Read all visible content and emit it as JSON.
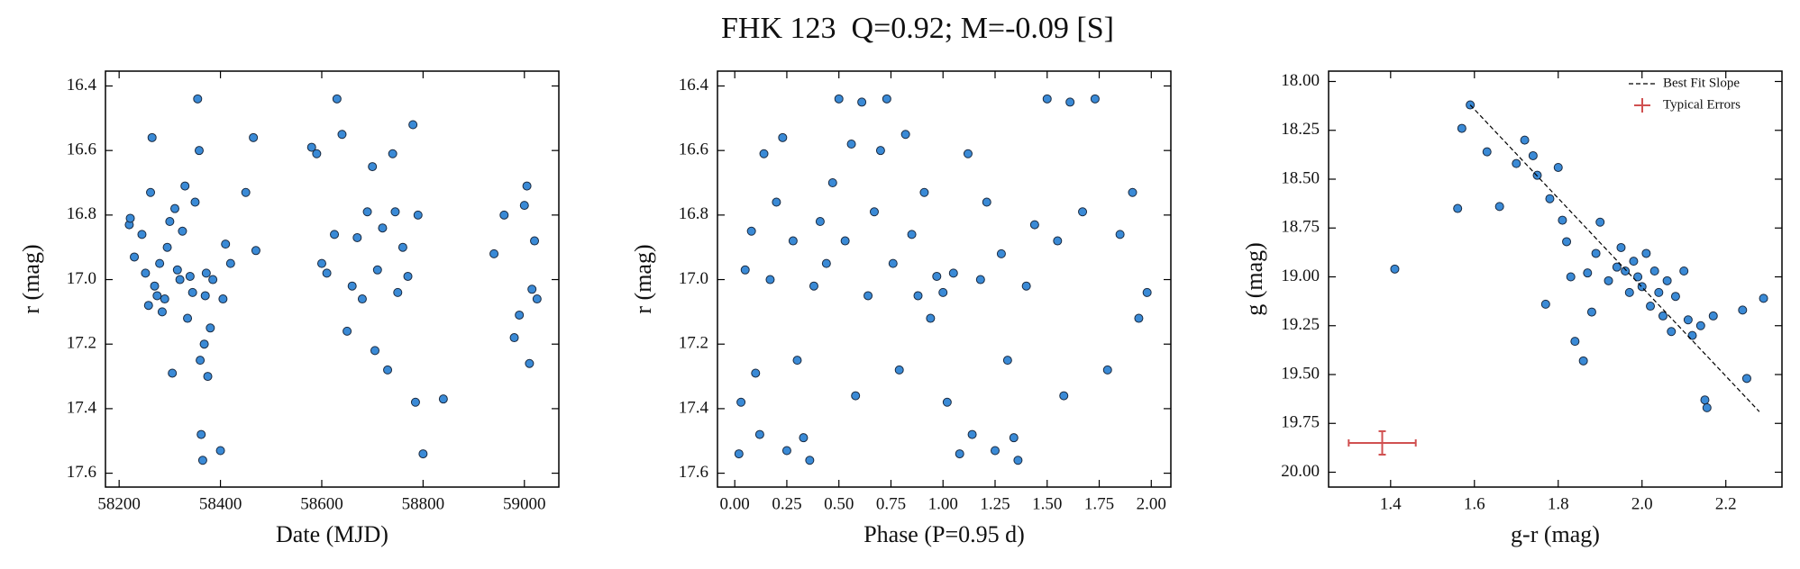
{
  "title": "FHK 123  Q=0.92; M=-0.09 [S]",
  "chart_data": [
    {
      "type": "scatter",
      "xlabel": "Date (MJD)",
      "ylabel": "r (mag)",
      "color": "#3a8ad6",
      "y_inverted": true,
      "xlim": [
        58173,
        59068
      ],
      "xticks": [
        58200,
        58400,
        58600,
        58800,
        59000
      ],
      "ylim": [
        16.354,
        17.643
      ],
      "yticks": [
        16.4,
        16.6,
        16.8,
        {
          "value": 17,
          "label": "17.0"
        },
        17.2,
        17.4,
        17.6
      ],
      "x": [
        58220,
        58222,
        58230,
        58245,
        58252,
        58258,
        58262,
        58265,
        58270,
        58275,
        58280,
        58285,
        58290,
        58295,
        58300,
        58305,
        58310,
        58315,
        58320,
        58325,
        58330,
        58335,
        58340,
        58345,
        58350,
        58355,
        58358,
        58360,
        58362,
        58365,
        58368,
        58370,
        58372,
        58375,
        58380,
        58385,
        58400,
        58405,
        58410,
        58420,
        58450,
        58465,
        58470,
        58580,
        58590,
        58600,
        58610,
        58625,
        58630,
        58640,
        58650,
        58660,
        58670,
        58680,
        58690,
        58700,
        58705,
        58710,
        58720,
        58730,
        58740,
        58745,
        58750,
        58760,
        58770,
        58780,
        58785,
        58790,
        58800,
        58840,
        58940,
        58960,
        58980,
        58990,
        59000,
        59005,
        59010,
        59015,
        59020,
        59025
      ],
      "values": [
        16.83,
        16.81,
        16.93,
        16.86,
        16.98,
        17.08,
        16.73,
        16.56,
        17.02,
        17.05,
        16.95,
        17.1,
        17.06,
        16.9,
        16.82,
        17.29,
        16.78,
        16.97,
        17.0,
        16.85,
        16.71,
        17.12,
        16.99,
        17.04,
        16.76,
        16.44,
        16.6,
        17.25,
        17.48,
        17.56,
        17.2,
        17.05,
        16.98,
        17.3,
        17.15,
        17.0,
        17.53,
        17.06,
        16.89,
        16.95,
        16.73,
        16.56,
        16.91,
        16.59,
        16.61,
        16.95,
        16.98,
        16.86,
        16.44,
        16.55,
        17.16,
        17.02,
        16.87,
        17.06,
        16.79,
        16.65,
        17.22,
        16.97,
        16.84,
        17.28,
        16.61,
        16.79,
        17.04,
        16.9,
        16.99,
        16.52,
        17.38,
        16.8,
        17.54,
        17.37,
        16.92,
        16.8,
        17.18,
        17.11,
        16.77,
        16.71,
        17.26,
        17.03,
        16.88,
        17.06
      ]
    },
    {
      "type": "scatter",
      "xlabel": "Phase (P=0.95 d)",
      "ylabel": "r (mag)",
      "color": "#3a8ad6",
      "y_inverted": true,
      "xlim": [
        -0.083,
        2.094
      ],
      "xticks": [
        {
          "value": 0,
          "label": "0.00"
        },
        {
          "value": 0.25,
          "label": "0.25"
        },
        {
          "value": 0.5,
          "label": "0.50"
        },
        {
          "value": 0.75,
          "label": "0.75"
        },
        {
          "value": 1,
          "label": "1.00"
        },
        {
          "value": 1.25,
          "label": "1.25"
        },
        {
          "value": 1.5,
          "label": "1.50"
        },
        {
          "value": 1.75,
          "label": "1.75"
        },
        {
          "value": 2,
          "label": "2.00"
        }
      ],
      "ylim": [
        16.354,
        17.643
      ],
      "yticks": [
        16.4,
        16.6,
        16.8,
        {
          "value": 17,
          "label": "17.0"
        },
        17.2,
        17.4,
        17.6
      ],
      "x": [
        0.02,
        0.03,
        0.05,
        0.08,
        0.1,
        0.12,
        0.14,
        0.17,
        0.2,
        0.23,
        0.25,
        0.28,
        0.3,
        0.33,
        0.36,
        0.38,
        0.41,
        0.44,
        0.47,
        0.5,
        0.53,
        0.56,
        0.58,
        0.61,
        0.64,
        0.67,
        0.7,
        0.73,
        0.76,
        0.79,
        0.82,
        0.85,
        0.88,
        0.91,
        0.94,
        0.97,
        1.0,
        1.02,
        1.05,
        1.08,
        1.12,
        1.14,
        1.18,
        1.21,
        1.25,
        1.28,
        1.31,
        1.34,
        1.36,
        1.4,
        1.44,
        1.5,
        1.55,
        1.58,
        1.61,
        1.67,
        1.73,
        1.79,
        1.85,
        1.91,
        1.94,
        1.98
      ],
      "values": [
        17.54,
        17.38,
        16.97,
        16.85,
        17.29,
        17.48,
        16.61,
        17.0,
        16.76,
        16.56,
        17.53,
        16.88,
        17.25,
        17.49,
        17.56,
        17.02,
        16.82,
        16.95,
        16.7,
        16.44,
        16.88,
        16.58,
        17.36,
        16.45,
        17.05,
        16.79,
        16.6,
        16.44,
        16.95,
        17.28,
        16.55,
        16.86,
        17.05,
        16.73,
        17.12,
        16.99,
        17.04,
        17.38,
        16.98,
        17.54,
        16.61,
        17.48,
        17.0,
        16.76,
        17.53,
        16.92,
        17.25,
        17.49,
        17.56,
        17.02,
        16.83,
        16.44,
        16.88,
        17.36,
        16.45,
        16.79,
        16.44,
        17.28,
        16.86,
        16.73,
        17.12,
        17.04
      ]
    },
    {
      "type": "scatter",
      "xlabel": "g-r (mag)",
      "ylabel": "g (mag)",
      "color": "#3a8ad6",
      "y_inverted": true,
      "xlim": [
        1.252,
        2.334
      ],
      "xticks": [
        1.4,
        1.6,
        1.8,
        {
          "value": 2,
          "label": "2.0"
        },
        2.2
      ],
      "ylim": [
        17.947,
        20.076
      ],
      "yticks": [
        {
          "value": 18,
          "label": "18.00"
        },
        {
          "value": 18.25,
          "label": "18.25"
        },
        {
          "value": 18.5,
          "label": "18.50"
        },
        {
          "value": 18.75,
          "label": "18.75"
        },
        {
          "value": 19,
          "label": "19.00"
        },
        {
          "value": 19.25,
          "label": "19.25"
        },
        {
          "value": 19.5,
          "label": "19.50"
        },
        {
          "value": 19.75,
          "label": "19.75"
        },
        {
          "value": 20,
          "label": "20.00"
        }
      ],
      "x": [
        1.41,
        1.56,
        1.57,
        1.59,
        1.63,
        1.66,
        1.7,
        1.72,
        1.74,
        1.75,
        1.77,
        1.78,
        1.8,
        1.81,
        1.82,
        1.83,
        1.84,
        1.86,
        1.87,
        1.88,
        1.89,
        1.9,
        1.92,
        1.94,
        1.95,
        1.97,
        1.98,
        2.0,
        2.01,
        2.02,
        2.03,
        2.05,
        2.06,
        2.07,
        2.08,
        2.1,
        2.11,
        2.12,
        2.14,
        2.15,
        2.155,
        2.17,
        2.24,
        2.25,
        2.29,
        1.96,
        1.99,
        2.04
      ],
      "values": [
        18.96,
        18.65,
        18.24,
        18.12,
        18.36,
        18.64,
        18.42,
        18.3,
        18.38,
        18.48,
        19.14,
        18.6,
        18.44,
        18.71,
        18.82,
        19.0,
        19.33,
        19.43,
        18.98,
        19.18,
        18.88,
        18.72,
        19.02,
        18.95,
        18.85,
        19.08,
        18.92,
        19.05,
        18.88,
        19.15,
        18.97,
        19.2,
        19.02,
        19.28,
        19.1,
        18.97,
        19.22,
        19.3,
        19.25,
        19.63,
        19.67,
        19.2,
        19.17,
        19.52,
        19.11,
        18.97,
        19.0,
        19.08
      ],
      "fit": {
        "name": "Best Fit Slope",
        "x": [
          1.59,
          2.28
        ],
        "y": [
          18.12,
          19.69
        ]
      },
      "errorbar": {
        "name": "Typical Errors",
        "color": "#d05050",
        "x": 1.38,
        "y": 19.85,
        "xerr": 0.08,
        "yerr": 0.06
      }
    }
  ]
}
